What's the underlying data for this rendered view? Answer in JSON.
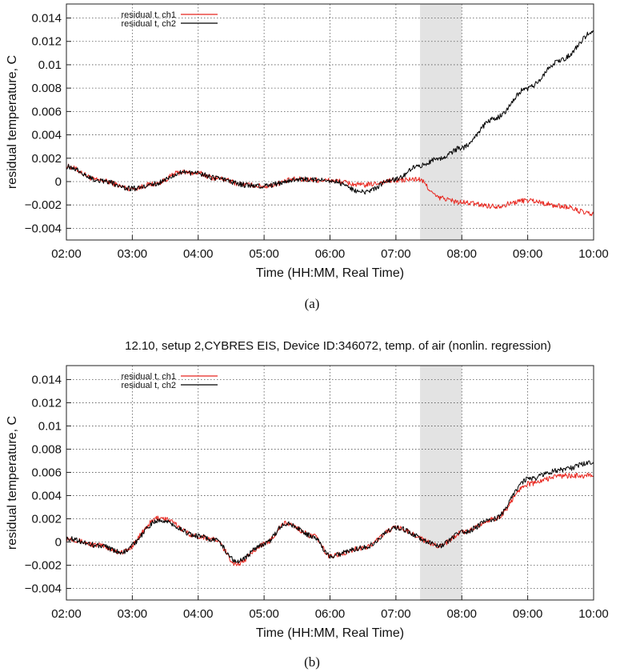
{
  "chart_data": [
    {
      "id": "a",
      "type": "line",
      "title": "",
      "caption": "(a)",
      "xlabel": "Time (HH:MM, Real Time)",
      "ylabel": "residual temperature, C",
      "x_tick_labels": [
        "02:00",
        "03:00",
        "04:00",
        "05:00",
        "06:00",
        "07:00",
        "08:00",
        "09:00",
        "10:00"
      ],
      "y_tick_labels": [
        "0.014",
        "0.012",
        "0.01",
        "0.008",
        "0.006",
        "0.004",
        "0.002",
        "0",
        "−0.002",
        "−0.004"
      ],
      "xlim": [
        "02:00",
        "10:00"
      ],
      "ylim": [
        -0.005,
        0.0152
      ],
      "y_ticks": [
        0.014,
        0.012,
        0.01,
        0.008,
        0.006,
        0.004,
        0.002,
        0,
        -0.002,
        -0.004
      ],
      "grid": true,
      "legend": "top-left",
      "shaded_region": [
        "07:22",
        "08:00"
      ],
      "series": [
        {
          "name": "residual t, ch1",
          "color": "#e8251d",
          "x": [
            "02:00",
            "02:30",
            "03:00",
            "03:20",
            "03:45",
            "04:00",
            "04:15",
            "04:45",
            "05:00",
            "05:30",
            "06:00",
            "06:30",
            "07:00",
            "07:20",
            "07:40",
            "08:00",
            "08:30",
            "09:00",
            "09:30",
            "10:00"
          ],
          "y": [
            0.0013,
            0.0001,
            -0.0006,
            -0.0002,
            0.0008,
            0.0007,
            0.0003,
            -0.0003,
            -0.0004,
            0.0002,
            0.0001,
            -0.0003,
            0.0001,
            0.0002,
            -0.0014,
            -0.0018,
            -0.0021,
            -0.0016,
            -0.0021,
            -0.0028
          ]
        },
        {
          "name": "residual t, ch2",
          "color": "#000000",
          "x": [
            "02:00",
            "02:30",
            "03:00",
            "03:20",
            "03:45",
            "04:00",
            "04:15",
            "04:45",
            "05:00",
            "05:30",
            "06:00",
            "06:30",
            "07:00",
            "07:20",
            "07:40",
            "08:00",
            "08:30",
            "09:00",
            "09:30",
            "10:00"
          ],
          "y": [
            0.0013,
            0.0001,
            -0.0006,
            -0.0002,
            0.0008,
            0.0007,
            0.0003,
            -0.0003,
            -0.0004,
            0.0002,
            0.0001,
            -0.0009,
            0.0002,
            0.0013,
            0.002,
            0.0029,
            0.0054,
            0.008,
            0.0104,
            0.0128
          ]
        }
      ]
    },
    {
      "id": "b",
      "type": "line",
      "title": "12.10, setup 2,CYBRES EIS, Device ID:346072, temp. of air (nonlin. regression)",
      "caption": "(b)",
      "xlabel": "Time (HH:MM, Real Time)",
      "ylabel": "residual temperature, C",
      "x_tick_labels": [
        "02:00",
        "03:00",
        "04:00",
        "05:00",
        "06:00",
        "07:00",
        "08:00",
        "09:00",
        "10:00"
      ],
      "y_tick_labels": [
        "0.014",
        "0.012",
        "0.01",
        "0.008",
        "0.006",
        "0.004",
        "0.002",
        "0",
        "−0.002",
        "−0.004"
      ],
      "xlim": [
        "02:00",
        "10:00"
      ],
      "ylim": [
        -0.005,
        0.0152
      ],
      "y_ticks": [
        0.014,
        0.012,
        0.01,
        0.008,
        0.006,
        0.004,
        0.002,
        0,
        -0.002,
        -0.004
      ],
      "grid": true,
      "legend": "top-left",
      "shaded_region": [
        "07:22",
        "08:00"
      ],
      "series": [
        {
          "name": "residual t, ch1",
          "color": "#e8251d",
          "x": [
            "02:00",
            "02:30",
            "02:50",
            "03:25",
            "04:00",
            "04:15",
            "04:35",
            "05:00",
            "05:20",
            "05:45",
            "06:00",
            "06:30",
            "07:00",
            "07:40",
            "08:00",
            "08:30",
            "09:00",
            "09:30",
            "10:00"
          ],
          "y": [
            0.0003,
            -0.0003,
            -0.0009,
            0.0021,
            0.0005,
            0.0002,
            -0.0019,
            -0.0002,
            0.0016,
            0.0005,
            -0.0012,
            -0.0005,
            0.0012,
            -0.0003,
            0.0008,
            0.002,
            0.005,
            0.0057,
            0.0057
          ]
        },
        {
          "name": "residual t, ch2",
          "color": "#000000",
          "x": [
            "02:00",
            "02:30",
            "02:50",
            "03:25",
            "04:00",
            "04:15",
            "04:35",
            "05:00",
            "05:20",
            "05:45",
            "06:00",
            "06:30",
            "07:00",
            "07:40",
            "08:00",
            "08:30",
            "09:00",
            "09:30",
            "10:00"
          ],
          "y": [
            0.0003,
            -0.0003,
            -0.0009,
            0.0019,
            0.0005,
            0.0002,
            -0.0017,
            -0.0002,
            0.0016,
            0.0005,
            -0.0012,
            -0.0005,
            0.0012,
            -0.0003,
            0.0008,
            0.002,
            0.0054,
            0.0062,
            0.0069
          ]
        }
      ]
    }
  ]
}
